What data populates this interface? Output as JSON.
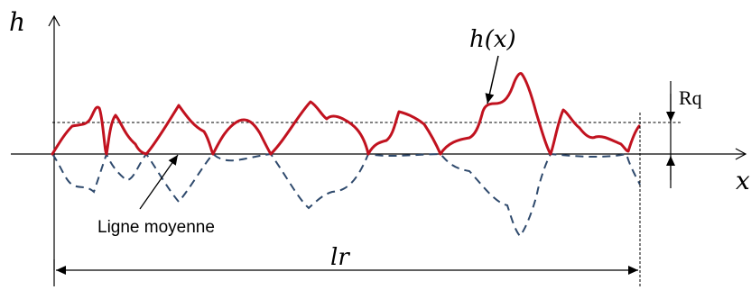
{
  "labels": {
    "y_axis": "h",
    "x_axis": "x",
    "profile_function": "h(x)",
    "rq": "Rq",
    "mean_line": "Ligne moyenne",
    "length": "lr"
  },
  "colors": {
    "profile": "#c1121f",
    "mirror_profile": "#2f4a6d",
    "axes": "#000000",
    "rms_line": "#000000"
  }
}
